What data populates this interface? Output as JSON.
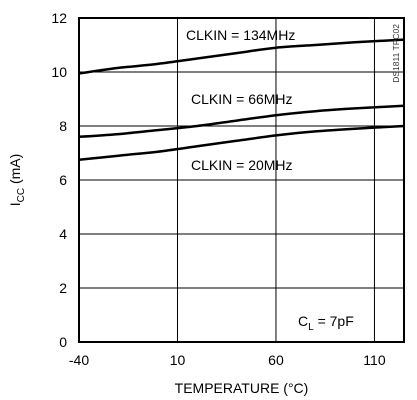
{
  "chart_data": {
    "type": "line",
    "title": "",
    "xlabel": "TEMPERATURE (°C)",
    "ylabel_main": "I",
    "ylabel_sub": "CC",
    "ylabel_unit": " (mA)",
    "xlim": [
      -40,
      125
    ],
    "ylim": [
      0,
      12
    ],
    "x_ticks": [
      -40,
      10,
      60,
      110
    ],
    "x_tick_labels": [
      "-40",
      "10",
      "60",
      "110"
    ],
    "y_ticks": [
      0,
      2,
      4,
      6,
      8,
      10,
      12
    ],
    "y_tick_labels": [
      "0",
      "2",
      "4",
      "6",
      "8",
      "10",
      "12"
    ],
    "x_gridlines": [
      10,
      60,
      110
    ],
    "y_gridlines": [
      2,
      4,
      6,
      8,
      10
    ],
    "grid": true,
    "line_color": "#000000",
    "series": [
      {
        "name": "CLKIN = 134MHz",
        "x": [
          -40,
          -20,
          0,
          20,
          40,
          60,
          80,
          100,
          125
        ],
        "y": [
          9.95,
          10.15,
          10.3,
          10.5,
          10.7,
          10.9,
          11.0,
          11.1,
          11.2
        ]
      },
      {
        "name": "CLKIN = 66MHz",
        "x": [
          -40,
          -20,
          0,
          20,
          40,
          60,
          80,
          100,
          125
        ],
        "y": [
          7.6,
          7.7,
          7.85,
          8.0,
          8.2,
          8.4,
          8.55,
          8.65,
          8.75
        ]
      },
      {
        "name": "CLKIN = 20MHz",
        "x": [
          -40,
          -20,
          0,
          20,
          40,
          60,
          80,
          100,
          125
        ],
        "y": [
          6.75,
          6.9,
          7.05,
          7.25,
          7.45,
          7.65,
          7.8,
          7.9,
          8.0
        ]
      }
    ],
    "annotation_main": "C",
    "annotation_sub": "L",
    "annotation_rest": " = 7pF",
    "watermark": "DS1811 TPC02"
  }
}
